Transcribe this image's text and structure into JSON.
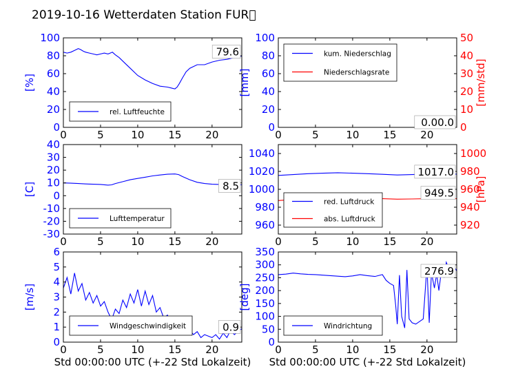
{
  "figure": {
    "title": "2019-10-16 Wetterdaten Station FUR\u0000"
  },
  "colors": {
    "blue": "#0000ff",
    "red": "#ff0000",
    "black": "#000000"
  },
  "chart_data": [
    {
      "type": "line",
      "id": "humidity",
      "xlim": [
        0,
        24
      ],
      "xticks": [
        0,
        5,
        10,
        15,
        20
      ],
      "ylim": [
        0,
        100
      ],
      "yticks": [
        0,
        20,
        40,
        60,
        80,
        100
      ],
      "ylabel": "[%]",
      "xlabel": "",
      "legend_position": "lower-left",
      "annotation": "79.6",
      "series": [
        {
          "name": "rel. Luftfeuchte",
          "color": "#0000ff",
          "x": [
            0,
            0.5,
            1,
            1.5,
            2,
            2.3,
            2.7,
            3,
            3.5,
            4,
            4.5,
            5,
            5.5,
            6,
            6.3,
            6.6,
            7,
            7.5,
            8,
            9,
            10,
            11,
            12,
            13,
            14,
            14.5,
            15,
            15.3,
            15.6,
            16,
            16.5,
            17,
            17.5,
            18,
            19,
            20,
            21,
            22,
            23,
            24
          ],
          "y": [
            84,
            83,
            84,
            86,
            88,
            87,
            85,
            84,
            83,
            82,
            81,
            82,
            83,
            82,
            83,
            84,
            81,
            78,
            74,
            66,
            58,
            53,
            49,
            46,
            45,
            44,
            43,
            45,
            49,
            55,
            62,
            66,
            68,
            70,
            70,
            73,
            75,
            76,
            78,
            79.6
          ]
        }
      ]
    },
    {
      "type": "line",
      "id": "precipitation",
      "xlim": [
        0,
        24
      ],
      "xticks": [
        0,
        5,
        10,
        15,
        20
      ],
      "ylim": [
        0,
        100
      ],
      "yticks": [
        0,
        20,
        40,
        60,
        80,
        100
      ],
      "ylabel": "[mm]",
      "y2lim": [
        0,
        50
      ],
      "y2ticks": [
        0,
        10,
        20,
        30,
        40,
        50
      ],
      "y2label": "[mm/std]",
      "xlabel": "",
      "legend_position": "top-left",
      "annotation": "0.00.0",
      "series": [
        {
          "name": "kum. Niederschlag",
          "color": "#0000ff",
          "axis": "left",
          "x": [
            0,
            24
          ],
          "y": [
            0,
            0
          ]
        },
        {
          "name": "Niederschlagsrate",
          "color": "#ff0000",
          "axis": "right",
          "x": [
            0,
            24
          ],
          "y": [
            0,
            0
          ]
        }
      ]
    },
    {
      "type": "line",
      "id": "temperature",
      "xlim": [
        0,
        24
      ],
      "xticks": [
        0,
        5,
        10,
        15,
        20
      ],
      "ylim": [
        -30,
        40
      ],
      "yticks": [
        -30,
        -20,
        -10,
        0,
        10,
        20,
        30,
        40
      ],
      "ylabel": "[C]",
      "xlabel": "",
      "legend_position": "lower-left",
      "annotation": "8.5",
      "series": [
        {
          "name": "Lufttemperatur",
          "color": "#0000ff",
          "x": [
            0,
            1,
            2,
            3,
            4,
            5,
            6,
            6.5,
            7,
            8,
            9,
            10,
            11,
            12,
            13,
            14,
            15,
            15.5,
            16,
            17,
            18,
            19,
            20,
            21,
            22,
            23,
            24
          ],
          "y": [
            10,
            9.8,
            9.5,
            9.2,
            9,
            8.8,
            8.3,
            8.5,
            9.5,
            11,
            12.5,
            13.5,
            14.5,
            15.5,
            16.2,
            16.8,
            17,
            16.5,
            15,
            12.5,
            10.5,
            9.5,
            9,
            8.8,
            8.6,
            8.5,
            8.5
          ]
        }
      ]
    },
    {
      "type": "line",
      "id": "pressure",
      "xlim": [
        0,
        24
      ],
      "xticks": [
        0,
        5,
        10,
        15,
        20
      ],
      "ylim": [
        950,
        1050
      ],
      "yticks": [
        960,
        980,
        1000,
        1020,
        1040
      ],
      "ylabel": "",
      "y2lim": [
        910,
        1010
      ],
      "y2ticks": [
        920,
        940,
        960,
        980,
        1000
      ],
      "y2label": "[hPa]",
      "xlabel": "",
      "legend_position": "lower-left",
      "annotation_top": "1017.0",
      "annotation_bottom": "949.5",
      "series": [
        {
          "name": "red. Luftdruck",
          "color": "#0000ff",
          "axis": "left",
          "x": [
            0,
            2,
            4,
            6,
            8,
            10,
            12,
            14,
            16,
            18,
            20,
            22,
            24
          ],
          "y": [
            1015.5,
            1016.5,
            1017.5,
            1018,
            1018.5,
            1018,
            1017.5,
            1016.8,
            1016,
            1016.5,
            1017,
            1017,
            1017
          ]
        },
        {
          "name": "abs. Luftdruck",
          "color": "#ff0000",
          "axis": "right",
          "x": [
            0,
            2,
            4,
            6,
            8,
            10,
            12,
            14,
            16,
            18,
            20,
            22,
            24
          ],
          "y": [
            947.5,
            948.5,
            949.3,
            950,
            950.5,
            950.2,
            950,
            949.5,
            949,
            949.2,
            949.5,
            949.5,
            949.5
          ]
        }
      ]
    },
    {
      "type": "line",
      "id": "windspeed",
      "xlim": [
        0,
        24
      ],
      "xticks": [
        0,
        5,
        10,
        15,
        20
      ],
      "ylim": [
        0,
        6
      ],
      "yticks": [
        0,
        1,
        2,
        3,
        4,
        5,
        6
      ],
      "ylabel": "[m/s]",
      "xlabel": "Std 00:00:00 UTC (+-22 Std Lokalzeit)",
      "legend_position": "lower-left",
      "annotation": "0.9",
      "series": [
        {
          "name": "Windgeschwindigkeit",
          "color": "#0000ff",
          "x": [
            0,
            0.5,
            1,
            1.5,
            2,
            2.5,
            3,
            3.5,
            4,
            4.5,
            5,
            5.5,
            6,
            6.5,
            7,
            7.5,
            8,
            8.5,
            9,
            9.5,
            10,
            10.5,
            11,
            11.5,
            12,
            12.5,
            13,
            13.5,
            14,
            14.5,
            15,
            15.5,
            16,
            16.5,
            17,
            17.5,
            18,
            18.5,
            19,
            19.5,
            20,
            20.5,
            21,
            21.5,
            22,
            22.5,
            23,
            23.5,
            24
          ],
          "y": [
            3.6,
            4.3,
            3.2,
            4.6,
            3.4,
            3.9,
            2.8,
            3.3,
            2.6,
            3.1,
            2.4,
            2.7,
            2.0,
            1.5,
            2.2,
            1.9,
            2.8,
            2.3,
            3.2,
            2.6,
            3.5,
            2.4,
            3.4,
            2.5,
            3.1,
            2.0,
            2.3,
            1.6,
            1.8,
            1.2,
            1.2,
            0.9,
            1.0,
            0.7,
            0.8,
            0.5,
            0.7,
            0.3,
            0.5,
            0.4,
            0.3,
            0.5,
            0.2,
            0.6,
            0.3,
            0.8,
            0.5,
            0.7,
            0.9
          ]
        }
      ]
    },
    {
      "type": "line",
      "id": "winddirection",
      "xlim": [
        0,
        24
      ],
      "xticks": [
        0,
        5,
        10,
        15,
        20
      ],
      "ylim": [
        0,
        350
      ],
      "yticks": [
        0,
        50,
        100,
        150,
        200,
        250,
        300,
        350
      ],
      "ylabel": "[deg]",
      "xlabel": "Std 00:00:00 UTC (+-22 Std Lokalzeit)",
      "legend_position": "lower-left",
      "annotation": "276.9",
      "series": [
        {
          "name": "Windrichtung",
          "color": "#0000ff",
          "x": [
            0,
            1,
            2,
            3,
            4,
            5,
            6,
            7,
            8,
            9,
            10,
            11,
            12,
            13,
            14,
            14.5,
            15,
            15.5,
            15.8,
            16,
            16.3,
            16.6,
            17,
            17.3,
            17.6,
            18,
            18.5,
            19,
            19.5,
            20,
            20.3,
            20.6,
            21,
            21.3,
            21.6,
            22,
            22.3,
            22.6,
            23,
            23.5,
            24
          ],
          "y": [
            262,
            264,
            268,
            265,
            263,
            262,
            260,
            258,
            256,
            254,
            257,
            262,
            258,
            255,
            262,
            240,
            228,
            220,
            140,
            70,
            260,
            100,
            55,
            280,
            90,
            75,
            70,
            80,
            90,
            295,
            75,
            270,
            210,
            265,
            200,
            290,
            250,
            310,
            280,
            300,
            276.9
          ]
        }
      ]
    }
  ]
}
